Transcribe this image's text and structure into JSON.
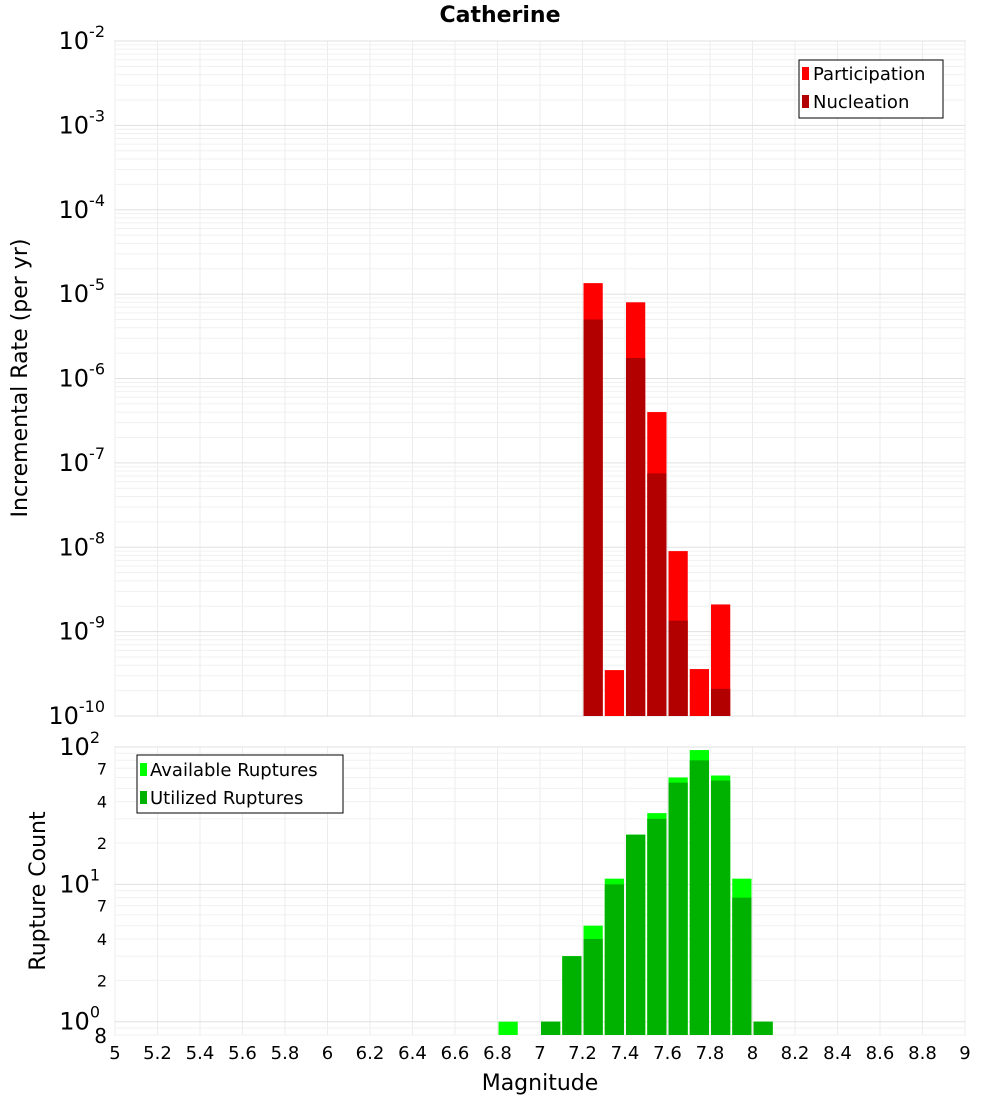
{
  "chart_data": [
    {
      "type": "bar",
      "title": "Catherine",
      "ylabel": "Incremental Rate (per yr)",
      "xlabel": "",
      "yscale": "log",
      "ylim": [
        1e-10,
        0.01
      ],
      "xlim": [
        5,
        9
      ],
      "bar_width": 0.1,
      "grid": true,
      "legend": "top-right",
      "series": [
        {
          "name": "Participation",
          "color": "#ff0000",
          "x": [
            7.25,
            7.35,
            7.45,
            7.55,
            7.65,
            7.75,
            7.85
          ],
          "values": [
            1.35e-05,
            3.5e-10,
            8e-06,
            4e-07,
            9e-09,
            3.6e-10,
            2.1e-09
          ]
        },
        {
          "name": "Nucleation",
          "color": "#b20000",
          "x": [
            7.25,
            7.45,
            7.55,
            7.65,
            7.85
          ],
          "values": [
            5e-06,
            1.75e-06,
            7.5e-08,
            1.35e-09,
            2.1e-10
          ]
        }
      ],
      "y_ticks": [
        {
          "base": "10",
          "exp": "-2"
        },
        {
          "base": "10",
          "exp": "-3"
        },
        {
          "base": "10",
          "exp": "-4"
        },
        {
          "base": "10",
          "exp": "-5"
        },
        {
          "base": "10",
          "exp": "-6"
        },
        {
          "base": "10",
          "exp": "-7"
        },
        {
          "base": "10",
          "exp": "-8"
        },
        {
          "base": "10",
          "exp": "-9"
        },
        {
          "base": "10",
          "exp": "-10"
        }
      ]
    },
    {
      "type": "bar",
      "title": "",
      "ylabel": "Rupture Count",
      "xlabel": "Magnitude",
      "yscale": "log",
      "ylim": [
        0.8,
        100
      ],
      "xlim": [
        5,
        9
      ],
      "bar_width": 0.1,
      "grid": true,
      "legend": "top-left",
      "series": [
        {
          "name": "Available Ruptures",
          "color": "#00ff00",
          "x": [
            6.85,
            7.05,
            7.15,
            7.25,
            7.35,
            7.45,
            7.55,
            7.65,
            7.75,
            7.85,
            7.95,
            8.05
          ],
          "values": [
            1,
            1,
            3,
            5,
            11,
            23,
            33,
            60,
            95,
            62,
            11,
            1
          ]
        },
        {
          "name": "Utilized Ruptures",
          "color": "#00b200",
          "x": [
            7.05,
            7.15,
            7.25,
            7.35,
            7.45,
            7.55,
            7.65,
            7.75,
            7.85,
            7.95,
            8.05
          ],
          "values": [
            1,
            3,
            4,
            10,
            23,
            30,
            55,
            80,
            57,
            8,
            1
          ]
        }
      ],
      "y_ticks": [
        {
          "base": "10",
          "exp": "2"
        },
        {
          "base": "7",
          "exp": ""
        },
        {
          "base": "4",
          "exp": ""
        },
        {
          "base": "2",
          "exp": ""
        },
        {
          "base": "10",
          "exp": "1"
        },
        {
          "base": "7",
          "exp": ""
        },
        {
          "base": "4",
          "exp": ""
        },
        {
          "base": "2",
          "exp": ""
        },
        {
          "base": "10",
          "exp": "0"
        },
        {
          "base": "8",
          "exp": ""
        }
      ],
      "x_ticks": [
        "5",
        "5.2",
        "5.4",
        "5.6",
        "5.8",
        "6",
        "6.2",
        "6.4",
        "6.6",
        "6.8",
        "7",
        "7.2",
        "7.4",
        "7.6",
        "7.8",
        "8",
        "8.2",
        "8.4",
        "8.6",
        "8.8",
        "9"
      ]
    }
  ]
}
